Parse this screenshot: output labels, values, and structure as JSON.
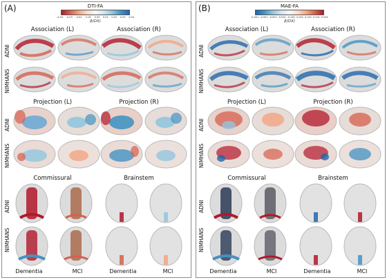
{
  "panel_a": {
    "label": "(A)",
    "colorbar": {
      "title": "DTI-FA",
      "ticks": [
        "-0.04",
        "-0.03",
        "-0.02",
        "-0.01",
        "0.00",
        "0.01",
        "0.02",
        "0.03",
        "0.04"
      ],
      "unit": "β(DX)",
      "low_color": "#b2182b",
      "high_color": "#2166ac"
    },
    "sections": {
      "assoc_left": "Association (L)",
      "assoc_right": "Association (R)",
      "proj_left": "Projection (L)",
      "proj_right": "Projection (R)",
      "commissural": "Commissural",
      "brainstem": "Brainstem"
    },
    "rows": {
      "adni": "ADNI",
      "nimhans": "NIMHANS"
    },
    "columns": {
      "dementia": "Dementia",
      "mci": "MCI"
    }
  },
  "panel_b": {
    "label": "(B)",
    "colorbar": {
      "title": "MAE-FA",
      "ticks": [
        "-0.001",
        "-0.001",
        "-0.001",
        "-0.001",
        "-0.001",
        "0.001",
        "0.001",
        "0.001",
        "0.001"
      ],
      "unit": "β(DX)",
      "low_color": "#2166ac",
      "high_color": "#b2182b"
    },
    "sections": {
      "assoc_left": "Association (L)",
      "assoc_right": "Association (R)",
      "proj_left": "Projection (L)",
      "proj_right": "Projection (R)",
      "commissural": "Commissural",
      "brainstem": "Brainstem"
    },
    "rows": {
      "adni": "ADNI",
      "nimhans": "NIMHANS"
    },
    "columns": {
      "dementia": "Dementia",
      "mci": "MCI"
    }
  }
}
